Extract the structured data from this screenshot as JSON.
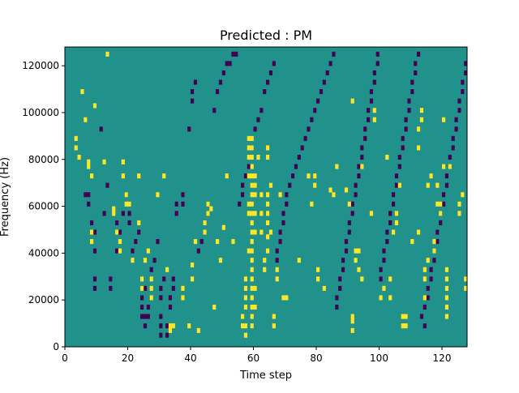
{
  "chart_data": {
    "type": "heatmap",
    "title": "Predicted : PM",
    "xlabel": "Time step",
    "ylabel": "Frequency (Hz)",
    "xlim": [
      0,
      128
    ],
    "ylim": [
      0,
      128000
    ],
    "x_ticks": [
      0,
      20,
      40,
      60,
      80,
      100,
      120
    ],
    "y_ticks": [
      0,
      20000,
      40000,
      60000,
      80000,
      100000,
      120000
    ],
    "grid": false,
    "legend": "none",
    "grid_shape": {
      "time_steps": 128,
      "frequency_bins": 64,
      "bin_width_hz": 2000
    },
    "colors": {
      "background": "#21918c",
      "high": "#fde725",
      "low": "#440154"
    },
    "background_value": 0,
    "cells_high": [
      [
        3,
        42
      ],
      [
        3,
        44
      ],
      [
        4,
        40
      ],
      [
        5,
        54
      ],
      [
        6,
        48
      ],
      [
        7,
        38
      ],
      [
        7,
        39
      ],
      [
        8,
        22
      ],
      [
        8,
        24
      ],
      [
        8,
        36
      ],
      [
        9,
        51
      ],
      [
        12,
        39
      ],
      [
        13,
        62
      ],
      [
        15,
        28
      ],
      [
        15,
        29
      ],
      [
        16,
        24
      ],
      [
        17,
        20
      ],
      [
        17,
        22
      ],
      [
        18,
        36
      ],
      [
        18,
        39
      ],
      [
        19,
        30
      ],
      [
        19,
        32
      ],
      [
        20,
        30
      ],
      [
        21,
        18
      ],
      [
        23,
        26
      ],
      [
        23,
        36
      ],
      [
        24,
        12
      ],
      [
        24,
        14
      ],
      [
        25,
        18
      ],
      [
        26,
        20
      ],
      [
        27,
        10
      ],
      [
        27,
        12
      ],
      [
        27,
        14
      ],
      [
        29,
        32
      ],
      [
        31,
        36
      ],
      [
        32,
        16
      ],
      [
        33,
        3
      ],
      [
        33,
        4
      ],
      [
        34,
        4
      ],
      [
        37,
        10
      ],
      [
        37,
        12
      ],
      [
        39,
        4
      ],
      [
        40,
        14
      ],
      [
        40,
        17
      ],
      [
        41,
        22
      ],
      [
        42,
        3
      ],
      [
        44,
        24
      ],
      [
        44,
        26
      ],
      [
        45,
        28
      ],
      [
        45,
        30
      ],
      [
        46,
        29
      ],
      [
        47,
        8
      ],
      [
        48,
        22
      ],
      [
        49,
        18
      ],
      [
        50,
        25
      ],
      [
        51,
        36
      ],
      [
        53,
        22
      ],
      [
        56,
        4
      ],
      [
        56,
        6
      ],
      [
        57,
        2
      ],
      [
        57,
        4
      ],
      [
        57,
        8
      ],
      [
        57,
        10
      ],
      [
        57,
        12
      ],
      [
        57,
        14
      ],
      [
        58,
        20
      ],
      [
        58,
        28
      ],
      [
        58,
        30
      ],
      [
        58,
        36
      ],
      [
        58,
        40
      ],
      [
        58,
        42
      ],
      [
        58,
        44
      ],
      [
        59,
        4
      ],
      [
        59,
        6
      ],
      [
        59,
        8
      ],
      [
        59,
        10
      ],
      [
        59,
        12
      ],
      [
        59,
        14
      ],
      [
        59,
        16
      ],
      [
        59,
        18
      ],
      [
        59,
        20
      ],
      [
        59,
        22
      ],
      [
        59,
        24
      ],
      [
        59,
        26
      ],
      [
        59,
        28
      ],
      [
        59,
        30
      ],
      [
        59,
        32
      ],
      [
        59,
        34
      ],
      [
        59,
        36
      ],
      [
        59,
        38
      ],
      [
        59,
        40
      ],
      [
        59,
        42
      ],
      [
        59,
        44
      ],
      [
        60,
        8
      ],
      [
        60,
        12
      ],
      [
        60,
        24
      ],
      [
        60,
        28
      ],
      [
        60,
        32
      ],
      [
        60,
        34
      ],
      [
        60,
        36
      ],
      [
        61,
        40
      ],
      [
        62,
        24
      ],
      [
        62,
        28
      ],
      [
        62,
        32
      ],
      [
        63,
        16
      ],
      [
        63,
        18
      ],
      [
        64,
        20
      ],
      [
        64,
        23
      ],
      [
        64,
        26
      ],
      [
        64,
        28
      ],
      [
        64,
        30
      ],
      [
        64,
        32
      ],
      [
        64,
        40
      ],
      [
        64,
        42
      ],
      [
        65,
        24
      ],
      [
        65,
        34
      ],
      [
        66,
        4
      ],
      [
        66,
        6
      ],
      [
        67,
        14
      ],
      [
        67,
        16
      ],
      [
        68,
        32
      ],
      [
        69,
        10
      ],
      [
        70,
        10
      ],
      [
        74,
        18
      ],
      [
        77,
        36
      ],
      [
        78,
        30
      ],
      [
        79,
        34
      ],
      [
        79,
        36
      ],
      [
        80,
        14
      ],
      [
        80,
        16
      ],
      [
        82,
        12
      ],
      [
        84,
        33
      ],
      [
        85,
        32
      ],
      [
        86,
        38
      ],
      [
        89,
        33
      ],
      [
        90,
        30
      ],
      [
        91,
        3
      ],
      [
        91,
        5
      ],
      [
        91,
        6
      ],
      [
        91,
        52
      ],
      [
        92,
        18
      ],
      [
        92,
        20
      ],
      [
        93,
        16
      ],
      [
        93,
        20
      ],
      [
        94,
        14
      ],
      [
        94,
        38
      ],
      [
        97,
        28
      ],
      [
        98,
        48
      ],
      [
        98,
        50
      ],
      [
        100,
        10
      ],
      [
        101,
        12
      ],
      [
        102,
        40
      ],
      [
        103,
        10
      ],
      [
        103,
        14
      ],
      [
        104,
        24
      ],
      [
        105,
        26
      ],
      [
        105,
        28
      ],
      [
        106,
        34
      ],
      [
        107,
        4
      ],
      [
        107,
        6
      ],
      [
        108,
        4
      ],
      [
        108,
        6
      ],
      [
        110,
        22
      ],
      [
        112,
        24
      ],
      [
        112,
        42
      ],
      [
        112,
        46
      ],
      [
        113,
        48
      ],
      [
        113,
        50
      ],
      [
        114,
        10
      ],
      [
        114,
        14
      ],
      [
        114,
        16
      ],
      [
        115,
        18
      ],
      [
        115,
        34
      ],
      [
        116,
        36
      ],
      [
        117,
        20
      ],
      [
        117,
        22
      ],
      [
        118,
        30
      ],
      [
        118,
        34
      ],
      [
        119,
        28
      ],
      [
        119,
        30
      ],
      [
        120,
        38
      ],
      [
        120,
        48
      ],
      [
        121,
        6
      ],
      [
        121,
        8
      ],
      [
        121,
        10
      ],
      [
        121,
        12
      ],
      [
        121,
        14
      ],
      [
        121,
        16
      ],
      [
        122,
        38
      ],
      [
        125,
        28
      ],
      [
        125,
        30
      ],
      [
        126,
        32
      ],
      [
        127,
        12
      ],
      [
        127,
        14
      ]
    ],
    "cells_low": [
      [
        6,
        32
      ],
      [
        7,
        30
      ],
      [
        7,
        32
      ],
      [
        8,
        26
      ],
      [
        9,
        12
      ],
      [
        9,
        14
      ],
      [
        9,
        20
      ],
      [
        9,
        24
      ],
      [
        11,
        46
      ],
      [
        12,
        28
      ],
      [
        13,
        34
      ],
      [
        14,
        12
      ],
      [
        14,
        14
      ],
      [
        16,
        20
      ],
      [
        16,
        26
      ],
      [
        17,
        24
      ],
      [
        18,
        28
      ],
      [
        19,
        32
      ],
      [
        20,
        26
      ],
      [
        20,
        28
      ],
      [
        21,
        20
      ],
      [
        22,
        22
      ],
      [
        23,
        24
      ],
      [
        24,
        6
      ],
      [
        24,
        8
      ],
      [
        24,
        10
      ],
      [
        24,
        12
      ],
      [
        25,
        4
      ],
      [
        25,
        6
      ],
      [
        25,
        12
      ],
      [
        26,
        6
      ],
      [
        26,
        8
      ],
      [
        27,
        16
      ],
      [
        28,
        18
      ],
      [
        29,
        22
      ],
      [
        30,
        2
      ],
      [
        30,
        4
      ],
      [
        30,
        6
      ],
      [
        30,
        10
      ],
      [
        30,
        12
      ],
      [
        31,
        14
      ],
      [
        32,
        2
      ],
      [
        32,
        4
      ],
      [
        33,
        8
      ],
      [
        33,
        10
      ],
      [
        34,
        12
      ],
      [
        34,
        14
      ],
      [
        35,
        28
      ],
      [
        35,
        30
      ],
      [
        37,
        30
      ],
      [
        37,
        32
      ],
      [
        39,
        46
      ],
      [
        40,
        52
      ],
      [
        40,
        54
      ],
      [
        41,
        56
      ],
      [
        42,
        20
      ],
      [
        43,
        22
      ],
      [
        44,
        24
      ],
      [
        44,
        26
      ],
      [
        45,
        28
      ],
      [
        45,
        30
      ],
      [
        47,
        50
      ],
      [
        48,
        54
      ],
      [
        49,
        56
      ],
      [
        50,
        58
      ],
      [
        51,
        60
      ],
      [
        52,
        60
      ],
      [
        53,
        62
      ],
      [
        54,
        62
      ],
      [
        55,
        30
      ],
      [
        56,
        32
      ],
      [
        56,
        34
      ],
      [
        57,
        36
      ],
      [
        58,
        38
      ],
      [
        59,
        42
      ],
      [
        60,
        46
      ],
      [
        61,
        48
      ],
      [
        62,
        50
      ],
      [
        63,
        54
      ],
      [
        64,
        56
      ],
      [
        65,
        58
      ],
      [
        66,
        60
      ],
      [
        67,
        18
      ],
      [
        67,
        20
      ],
      [
        68,
        22
      ],
      [
        68,
        24
      ],
      [
        69,
        26
      ],
      [
        69,
        28
      ],
      [
        70,
        30
      ],
      [
        70,
        32
      ],
      [
        71,
        34
      ],
      [
        72,
        36
      ],
      [
        73,
        38
      ],
      [
        74,
        40
      ],
      [
        75,
        42
      ],
      [
        76,
        44
      ],
      [
        77,
        46
      ],
      [
        78,
        48
      ],
      [
        79,
        50
      ],
      [
        80,
        52
      ],
      [
        81,
        54
      ],
      [
        82,
        56
      ],
      [
        83,
        58
      ],
      [
        84,
        60
      ],
      [
        85,
        62
      ],
      [
        86,
        8
      ],
      [
        86,
        10
      ],
      [
        87,
        12
      ],
      [
        87,
        14
      ],
      [
        88,
        16
      ],
      [
        88,
        18
      ],
      [
        89,
        20
      ],
      [
        89,
        22
      ],
      [
        90,
        24
      ],
      [
        90,
        26
      ],
      [
        91,
        28
      ],
      [
        91,
        30
      ],
      [
        92,
        32
      ],
      [
        92,
        34
      ],
      [
        93,
        36
      ],
      [
        93,
        38
      ],
      [
        94,
        40
      ],
      [
        94,
        42
      ],
      [
        95,
        44
      ],
      [
        95,
        46
      ],
      [
        96,
        48
      ],
      [
        96,
        50
      ],
      [
        97,
        52
      ],
      [
        97,
        54
      ],
      [
        98,
        56
      ],
      [
        98,
        58
      ],
      [
        99,
        60
      ],
      [
        99,
        62
      ],
      [
        100,
        14
      ],
      [
        100,
        16
      ],
      [
        101,
        18
      ],
      [
        101,
        20
      ],
      [
        102,
        22
      ],
      [
        102,
        24
      ],
      [
        103,
        26
      ],
      [
        103,
        28
      ],
      [
        104,
        30
      ],
      [
        104,
        32
      ],
      [
        105,
        34
      ],
      [
        105,
        36
      ],
      [
        106,
        38
      ],
      [
        106,
        40
      ],
      [
        107,
        42
      ],
      [
        107,
        44
      ],
      [
        108,
        46
      ],
      [
        108,
        48
      ],
      [
        109,
        50
      ],
      [
        109,
        52
      ],
      [
        110,
        54
      ],
      [
        110,
        56
      ],
      [
        111,
        58
      ],
      [
        111,
        60
      ],
      [
        112,
        62
      ],
      [
        113,
        6
      ],
      [
        114,
        4
      ],
      [
        114,
        8
      ],
      [
        115,
        10
      ],
      [
        115,
        12
      ],
      [
        116,
        14
      ],
      [
        116,
        16
      ],
      [
        117,
        18
      ],
      [
        117,
        20
      ],
      [
        118,
        22
      ],
      [
        118,
        24
      ],
      [
        119,
        26
      ],
      [
        119,
        28
      ],
      [
        120,
        30
      ],
      [
        120,
        32
      ],
      [
        121,
        34
      ],
      [
        121,
        36
      ],
      [
        122,
        38
      ],
      [
        122,
        40
      ],
      [
        123,
        42
      ],
      [
        123,
        44
      ],
      [
        124,
        46
      ],
      [
        124,
        48
      ],
      [
        125,
        50
      ],
      [
        125,
        52
      ],
      [
        126,
        54
      ],
      [
        126,
        56
      ],
      [
        127,
        58
      ],
      [
        127,
        60
      ]
    ]
  }
}
